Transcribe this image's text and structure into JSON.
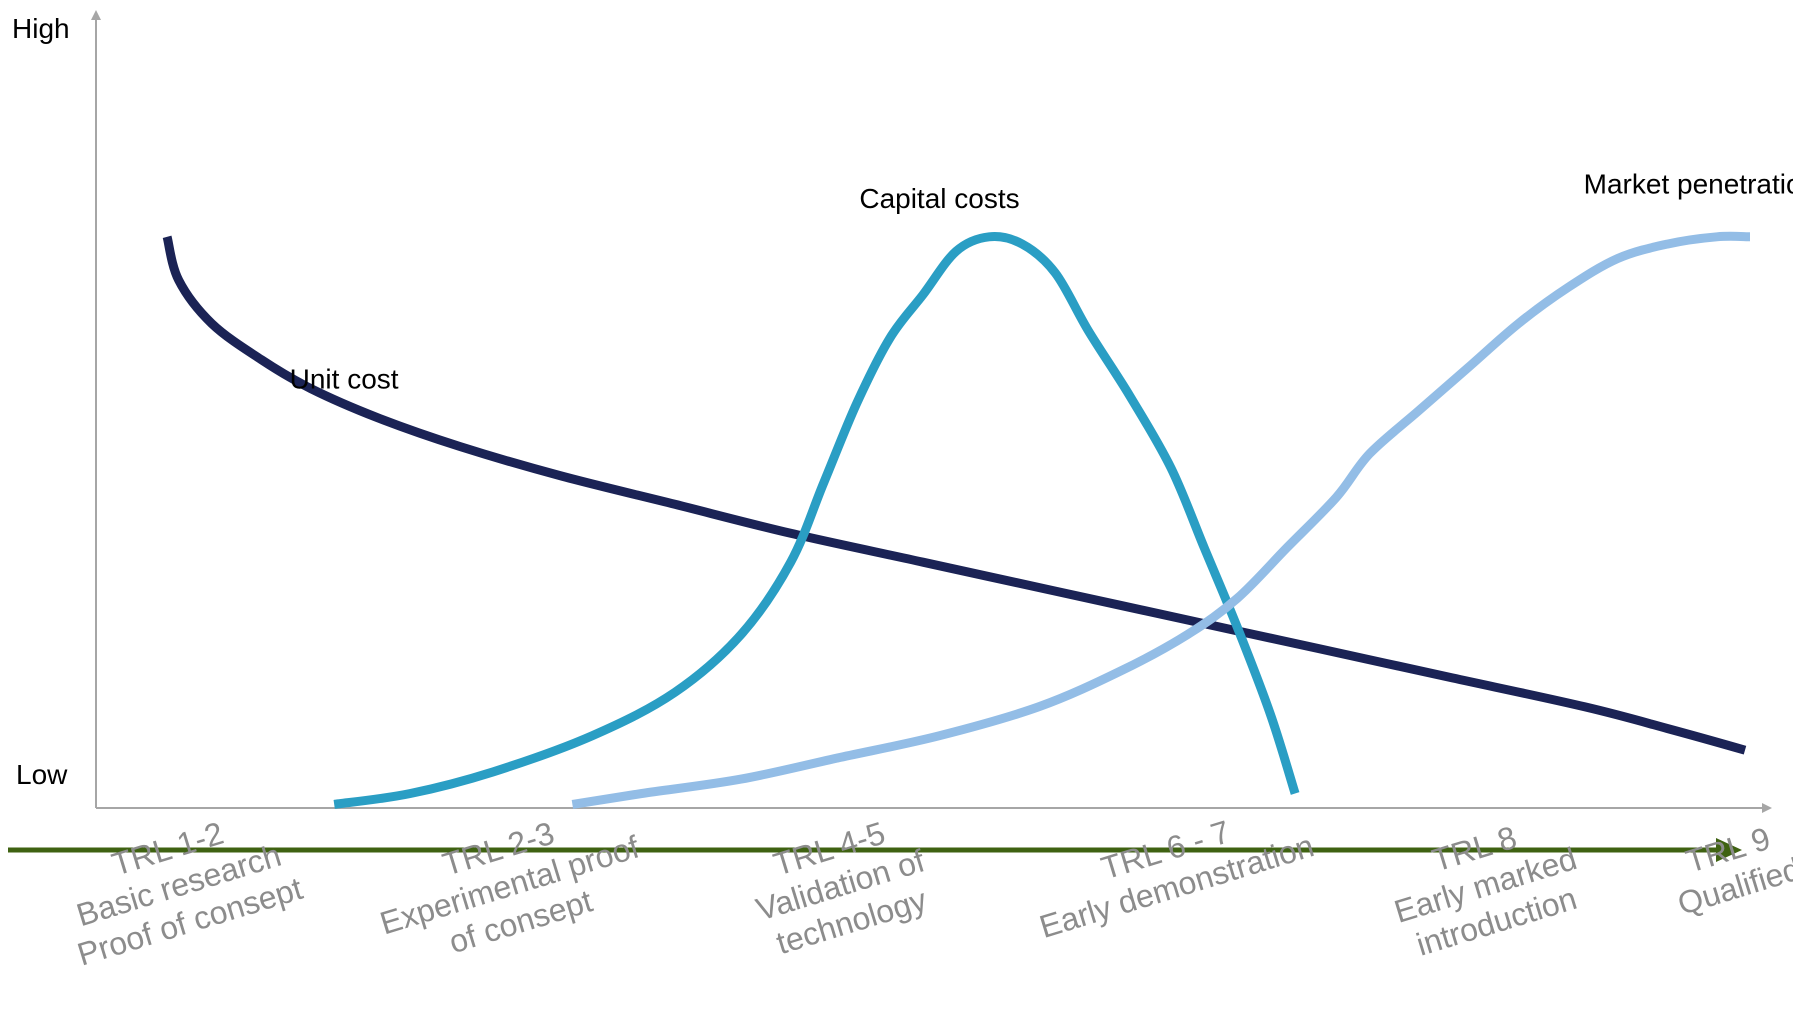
{
  "chart_data": {
    "type": "line",
    "y_axis": {
      "high_label": "High",
      "low_label": "Low",
      "ylim": [
        0,
        100
      ]
    },
    "x_axis": {
      "xlim": [
        0,
        100
      ],
      "categories": [
        {
          "lines": [
            "TRL 1-2",
            "Basic research",
            "Proof of consept"
          ],
          "x": 5
        },
        {
          "lines": [
            "TRL 2-3",
            "Experimental proof",
            "of consept"
          ],
          "x": 25
        },
        {
          "lines": [
            "TRL 4-5",
            "Validation of",
            "technology"
          ],
          "x": 45
        },
        {
          "lines": [
            "TRL 6 - 7",
            "Early demonstration"
          ],
          "x": 65
        },
        {
          "lines": [
            "TRL 8",
            "Early marked",
            "introduction"
          ],
          "x": 84
        },
        {
          "lines": [
            "TRL 9",
            "Qualified"
          ],
          "x": 99
        }
      ]
    },
    "series": [
      {
        "name": "Unit cost",
        "color": "#1b2355",
        "label_at": [
          15,
          58
        ],
        "points": [
          [
            4.3,
            79
          ],
          [
            5,
            73
          ],
          [
            7,
            67
          ],
          [
            10,
            62
          ],
          [
            13,
            58
          ],
          [
            17,
            54
          ],
          [
            22,
            50
          ],
          [
            28,
            46
          ],
          [
            35,
            42
          ],
          [
            42,
            38
          ],
          [
            50,
            34
          ],
          [
            58,
            30
          ],
          [
            66,
            26
          ],
          [
            74,
            22
          ],
          [
            82,
            18
          ],
          [
            90,
            14
          ],
          [
            95,
            11
          ],
          [
            99.7,
            8
          ]
        ]
      },
      {
        "name": "Capital costs",
        "color": "#2a9ec4",
        "label_at": [
          51,
          83
        ],
        "points": [
          [
            14.4,
            0.5
          ],
          [
            19,
            2
          ],
          [
            24,
            5
          ],
          [
            30,
            10
          ],
          [
            35,
            16
          ],
          [
            39,
            24
          ],
          [
            42,
            34
          ],
          [
            44,
            45
          ],
          [
            46,
            56
          ],
          [
            48,
            65
          ],
          [
            50,
            71
          ],
          [
            52,
            77
          ],
          [
            54,
            79
          ],
          [
            56,
            78
          ],
          [
            58,
            74
          ],
          [
            60,
            66
          ],
          [
            62.5,
            57
          ],
          [
            65,
            47
          ],
          [
            67,
            36
          ],
          [
            69,
            25
          ],
          [
            71,
            13
          ],
          [
            72.5,
            2
          ]
        ]
      },
      {
        "name": "Market penetration",
        "color": "#93bde6",
        "label_at": [
          97,
          85
        ],
        "points": [
          [
            28.8,
            0.5
          ],
          [
            33,
            2
          ],
          [
            39,
            4
          ],
          [
            45,
            7
          ],
          [
            51,
            10
          ],
          [
            57,
            14
          ],
          [
            62,
            19
          ],
          [
            66,
            24
          ],
          [
            69,
            29
          ],
          [
            72,
            36
          ],
          [
            75,
            43
          ],
          [
            77,
            49
          ],
          [
            80,
            55
          ],
          [
            83,
            61
          ],
          [
            86,
            67
          ],
          [
            89,
            72
          ],
          [
            92,
            76
          ],
          [
            95,
            78
          ],
          [
            98,
            79
          ],
          [
            100,
            79
          ]
        ]
      }
    ]
  }
}
